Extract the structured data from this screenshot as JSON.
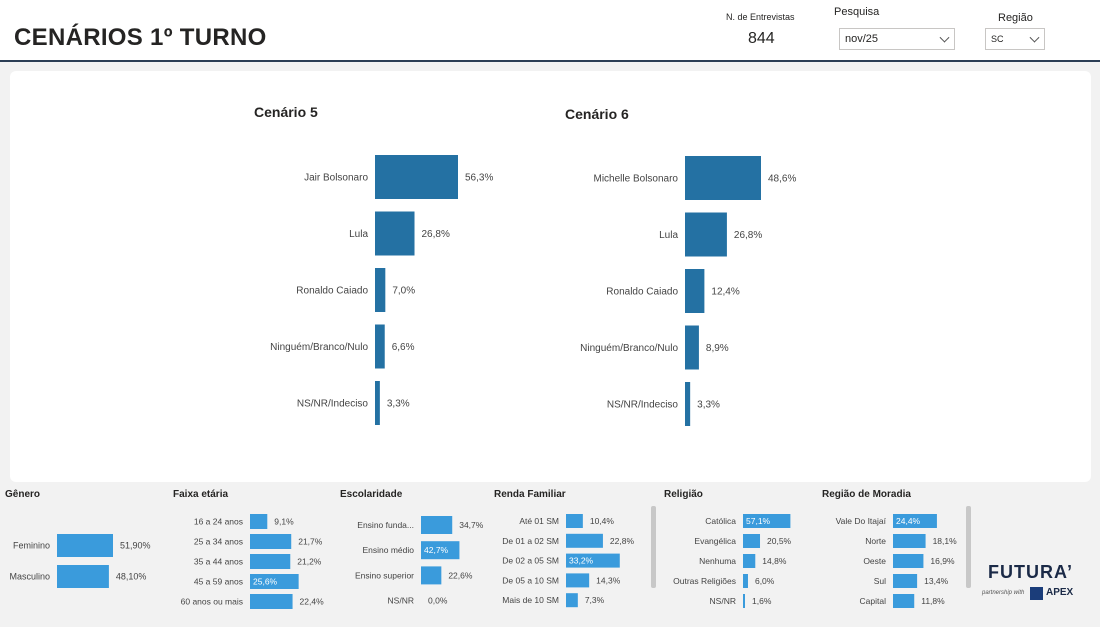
{
  "header": {
    "title": "CENÁRIOS 1º TURNO",
    "kpi_label": "N. de Entrevistas",
    "kpi_value": "844",
    "pesquisa_label": "Pesquisa",
    "pesquisa_value": "nov/25",
    "regiao_label": "Região",
    "regiao_value": "SC"
  },
  "chart_data": [
    {
      "type": "bar",
      "title": "Cenário 5",
      "orientation": "horizontal",
      "categories": [
        "Jair Bolsonaro",
        "Lula",
        "Ronaldo Caiado",
        "Ninguém/Branco/Nulo",
        "NS/NR/Indeciso"
      ],
      "values": [
        56.3,
        26.8,
        7.0,
        6.6,
        3.3
      ],
      "labels": [
        "56,3%",
        "26,8%",
        "7,0%",
        "6,6%",
        "3,3%"
      ],
      "color": "#2471a3"
    },
    {
      "type": "bar",
      "title": "Cenário 6",
      "orientation": "horizontal",
      "categories": [
        "Michelle Bolsonaro",
        "Lula",
        "Ronaldo Caiado",
        "Ninguém/Branco/Nulo",
        "NS/NR/Indeciso"
      ],
      "values": [
        48.6,
        26.8,
        12.4,
        8.9,
        3.3
      ],
      "labels": [
        "48,6%",
        "26,8%",
        "12,4%",
        "8,9%",
        "3,3%"
      ],
      "color": "#2471a3"
    },
    {
      "type": "bar",
      "title": "Gênero",
      "orientation": "horizontal",
      "categories": [
        "Feminino",
        "Masculino"
      ],
      "values": [
        51.9,
        48.1
      ],
      "labels": [
        "51,90%",
        "48,10%"
      ],
      "color": "#3a9bdc"
    },
    {
      "type": "bar",
      "title": "Faixa etária",
      "orientation": "horizontal",
      "categories": [
        "16 a 24 anos",
        "25 a 34 anos",
        "35 a 44 anos",
        "45 a 59 anos",
        "60 anos ou mais"
      ],
      "values": [
        9.1,
        21.7,
        21.2,
        25.6,
        22.4
      ],
      "labels": [
        "9,1%",
        "21,7%",
        "21,2%",
        "25,6%",
        "22,4%"
      ],
      "color": "#3a9bdc"
    },
    {
      "type": "bar",
      "title": "Escolaridade",
      "orientation": "horizontal",
      "categories": [
        "Ensino funda...",
        "Ensino médio",
        "Ensino superior",
        "NS/NR"
      ],
      "values": [
        34.7,
        42.7,
        22.6,
        0.0
      ],
      "labels": [
        "34,7%",
        "42,7%",
        "22,6%",
        "0,0%"
      ],
      "color": "#3a9bdc"
    },
    {
      "type": "bar",
      "title": "Renda Familiar",
      "orientation": "horizontal",
      "categories": [
        "Até 01 SM",
        "De 01 a 02 SM",
        "De 02 a 05 SM",
        "De 05 a 10 SM",
        "Mais de 10 SM"
      ],
      "values": [
        10.4,
        22.8,
        33.2,
        14.3,
        7.3
      ],
      "labels": [
        "10,4%",
        "22,8%",
        "33,2%",
        "14,3%",
        "7,3%"
      ],
      "color": "#3a9bdc"
    },
    {
      "type": "bar",
      "title": "Religião",
      "orientation": "horizontal",
      "categories": [
        "Católica",
        "Evangélica",
        "Nenhuma",
        "Outras Religiões",
        "NS/NR"
      ],
      "values": [
        57.1,
        20.5,
        14.8,
        6.0,
        1.6
      ],
      "labels": [
        "57,1%",
        "20,5%",
        "14,8%",
        "6,0%",
        "1,6%"
      ],
      "color": "#3a9bdc"
    },
    {
      "type": "bar",
      "title": "Região de Moradia",
      "orientation": "horizontal",
      "categories": [
        "Vale Do Itajaí",
        "Norte",
        "Oeste",
        "Sul",
        "Capital"
      ],
      "values": [
        24.4,
        18.1,
        16.9,
        13.4,
        11.8
      ],
      "labels": [
        "24,4%",
        "18,1%",
        "16,9%",
        "13,4%",
        "11,8%"
      ],
      "color": "#3a9bdc"
    }
  ],
  "logo": {
    "name": "FUTURA’",
    "partnership": "partnership with",
    "partner": "APEX"
  },
  "colors": {
    "main_bar": "#2471a3",
    "small_bar": "#3a9bdc",
    "header_rule": "#2b3e55"
  }
}
